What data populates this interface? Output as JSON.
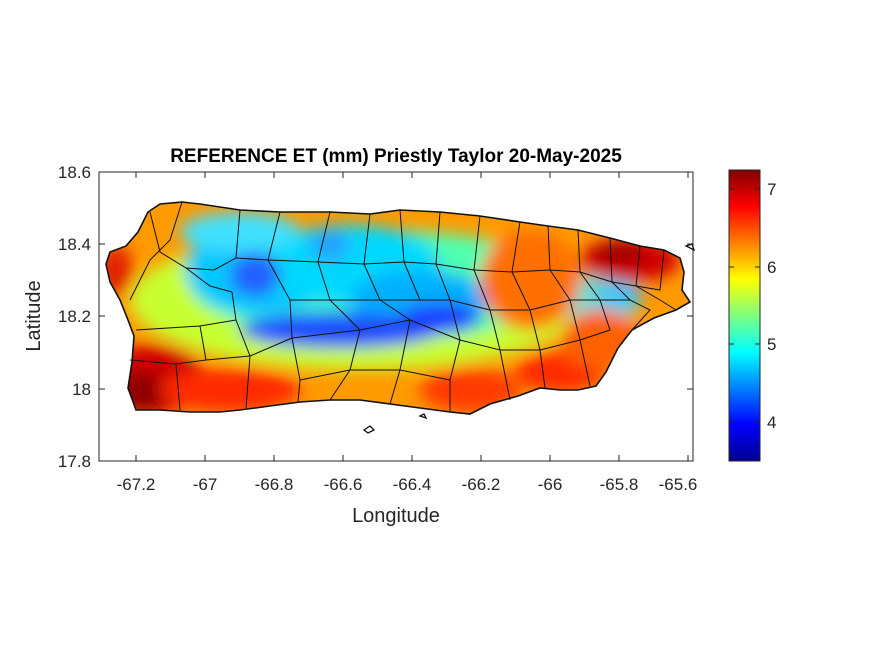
{
  "title": "REFERENCE ET (mm) Priestly Taylor 20-May-2025",
  "xlabel": "Longitude",
  "ylabel": "Latitude",
  "xticks": [
    "-67.2",
    "-67",
    "-66.8",
    "-66.6",
    "-66.4",
    "-66.2",
    "-66",
    "-65.8",
    "-65.6"
  ],
  "yticks": [
    "18.6",
    "18.4",
    "18.2",
    "18",
    "17.8"
  ],
  "colorbar": {
    "ticks": [
      "7",
      "6",
      "5",
      "4"
    ],
    "range": [
      3.5,
      7.25
    ],
    "colormap": "jet"
  },
  "axes": {
    "xlim": [
      -67.3,
      -65.58
    ],
    "ylim": [
      17.8,
      18.6
    ]
  }
}
